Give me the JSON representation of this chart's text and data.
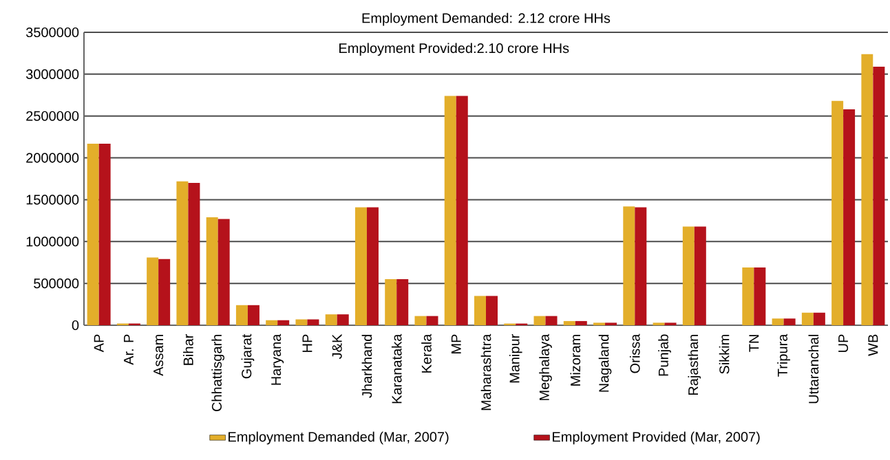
{
  "chart_data": {
    "type": "bar",
    "title": "Employment Demanded: 2.12 crore HHs",
    "subtitle": "Employment Provided:2.10 crore HHs",
    "categories": [
      "AP",
      "Ar. P",
      "Assam",
      "Bihar",
      "Chhattisgarh",
      "Gujarat",
      "Haryana",
      "HP",
      "J&K",
      "Jharkhand",
      "Karanataka",
      "Kerala",
      "MP",
      "Maharashtra",
      "Manipur",
      "Meghalaya",
      "Mizoram",
      "Nagaland",
      "Orissa",
      "Punjab",
      "Rajasthan",
      "Sikkim",
      "TN",
      "Tripura",
      "Uttaranchal",
      "UP",
      "WB"
    ],
    "series": [
      {
        "name": "Employment Demanded (Mar, 2007)",
        "color": "#e3ae2a",
        "values": [
          2170000,
          20000,
          810000,
          1720000,
          1290000,
          240000,
          60000,
          70000,
          130000,
          1410000,
          550000,
          110000,
          2740000,
          350000,
          20000,
          110000,
          50000,
          30000,
          1420000,
          30000,
          1180000,
          0,
          690000,
          80000,
          150000,
          2680000,
          3240000
        ]
      },
      {
        "name": "Employment Provided (Mar, 2007)",
        "color": "#b5121b",
        "values": [
          2170000,
          20000,
          790000,
          1700000,
          1270000,
          240000,
          60000,
          70000,
          130000,
          1410000,
          550000,
          110000,
          2740000,
          350000,
          20000,
          110000,
          50000,
          30000,
          1410000,
          30000,
          1180000,
          0,
          690000,
          80000,
          150000,
          2580000,
          3090000
        ]
      }
    ],
    "ylim": [
      0,
      3500000
    ],
    "yticks": [
      0,
      500000,
      1000000,
      1500000,
      2000000,
      2500000,
      3000000,
      3500000
    ],
    "grid": "y",
    "legend": "bottom"
  }
}
